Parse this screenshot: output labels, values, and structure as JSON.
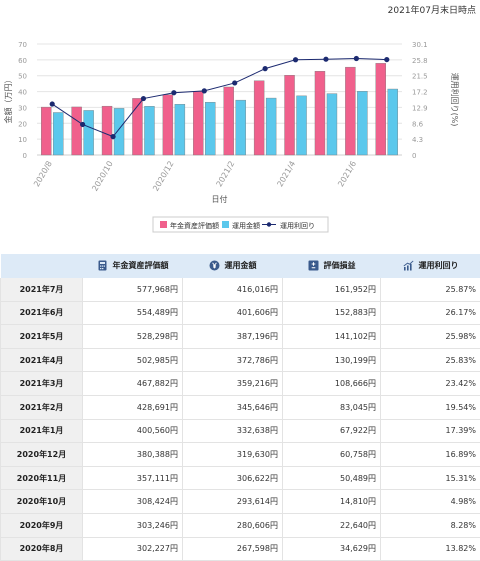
{
  "header": {
    "as_of": "2021年07月末日時点"
  },
  "chart_data": {
    "type": "bar",
    "title": "",
    "xlabel": "日付",
    "ylabel": "金額（万円）",
    "ylabel_right": "運用利回り(%)",
    "ylim": [
      0,
      70
    ],
    "ylim_right": [
      0,
      30.1
    ],
    "yticks": [
      0,
      10,
      20,
      30,
      40,
      50,
      60,
      70
    ],
    "yticks_right": [
      0,
      4.3,
      8.6,
      12.9,
      17.2,
      21.5,
      25.8,
      30.1
    ],
    "categories": [
      "2020/8",
      "2020/9",
      "2020/10",
      "2020/11",
      "2020/12",
      "2021/1",
      "2021/2",
      "2021/3",
      "2021/4",
      "2021/5",
      "2021/6",
      "2021/7"
    ],
    "x_tick_labels": [
      {
        "label": "2020/8",
        "index": 0
      },
      {
        "label": "2020/10",
        "index": 2
      },
      {
        "label": "2020/12",
        "index": 4
      },
      {
        "label": "2021/2",
        "index": 6
      },
      {
        "label": "2021/4",
        "index": 8
      },
      {
        "label": "2021/6",
        "index": 10
      }
    ],
    "series": [
      {
        "name": "年金資産評価額",
        "type": "bar",
        "axis": "left",
        "color": "#f0608c",
        "values": [
          30.2,
          30.3,
          30.8,
          35.7,
          38.0,
          40.1,
          42.9,
          46.8,
          50.3,
          52.8,
          55.4,
          57.8
        ]
      },
      {
        "name": "運用金額",
        "type": "bar",
        "axis": "left",
        "color": "#5bc8ec",
        "values": [
          26.8,
          28.1,
          29.4,
          30.7,
          32.0,
          33.3,
          34.6,
          35.9,
          37.3,
          38.7,
          40.2,
          41.6
        ]
      },
      {
        "name": "運用利回り",
        "type": "line",
        "axis": "right",
        "color": "#1c2a70",
        "values": [
          13.82,
          8.28,
          4.98,
          15.31,
          16.89,
          17.39,
          19.54,
          23.42,
          25.83,
          25.98,
          26.17,
          25.87
        ]
      }
    ],
    "grid": true,
    "legend": "bottom"
  },
  "table": {
    "headers": {
      "asset": "年金資産評価額",
      "invest": "運用金額",
      "gain": "評価損益",
      "yield": "運用利回り"
    },
    "rows": [
      {
        "month": "2021年7月",
        "asset": "577,968円",
        "invest": "416,016円",
        "gain": "161,952円",
        "yield": "25.87%"
      },
      {
        "month": "2021年6月",
        "asset": "554,489円",
        "invest": "401,606円",
        "gain": "152,883円",
        "yield": "26.17%"
      },
      {
        "month": "2021年5月",
        "asset": "528,298円",
        "invest": "387,196円",
        "gain": "141,102円",
        "yield": "25.98%"
      },
      {
        "month": "2021年4月",
        "asset": "502,985円",
        "invest": "372,786円",
        "gain": "130,199円",
        "yield": "25.83%"
      },
      {
        "month": "2021年3月",
        "asset": "467,882円",
        "invest": "359,216円",
        "gain": "108,666円",
        "yield": "23.42%"
      },
      {
        "month": "2021年2月",
        "asset": "428,691円",
        "invest": "345,646円",
        "gain": "83,045円",
        "yield": "19.54%"
      },
      {
        "month": "2021年1月",
        "asset": "400,560円",
        "invest": "332,638円",
        "gain": "67,922円",
        "yield": "17.39%"
      },
      {
        "month": "2020年12月",
        "asset": "380,388円",
        "invest": "319,630円",
        "gain": "60,758円",
        "yield": "16.89%"
      },
      {
        "month": "2020年11月",
        "asset": "357,111円",
        "invest": "306,622円",
        "gain": "50,489円",
        "yield": "15.31%"
      },
      {
        "month": "2020年10月",
        "asset": "308,424円",
        "invest": "293,614円",
        "gain": "14,810円",
        "yield": "4.98%"
      },
      {
        "month": "2020年9月",
        "asset": "303,246円",
        "invest": "280,606円",
        "gain": "22,640円",
        "yield": "8.28%"
      },
      {
        "month": "2020年8月",
        "asset": "302,227円",
        "invest": "267,598円",
        "gain": "34,629円",
        "yield": "13.82%"
      }
    ]
  }
}
